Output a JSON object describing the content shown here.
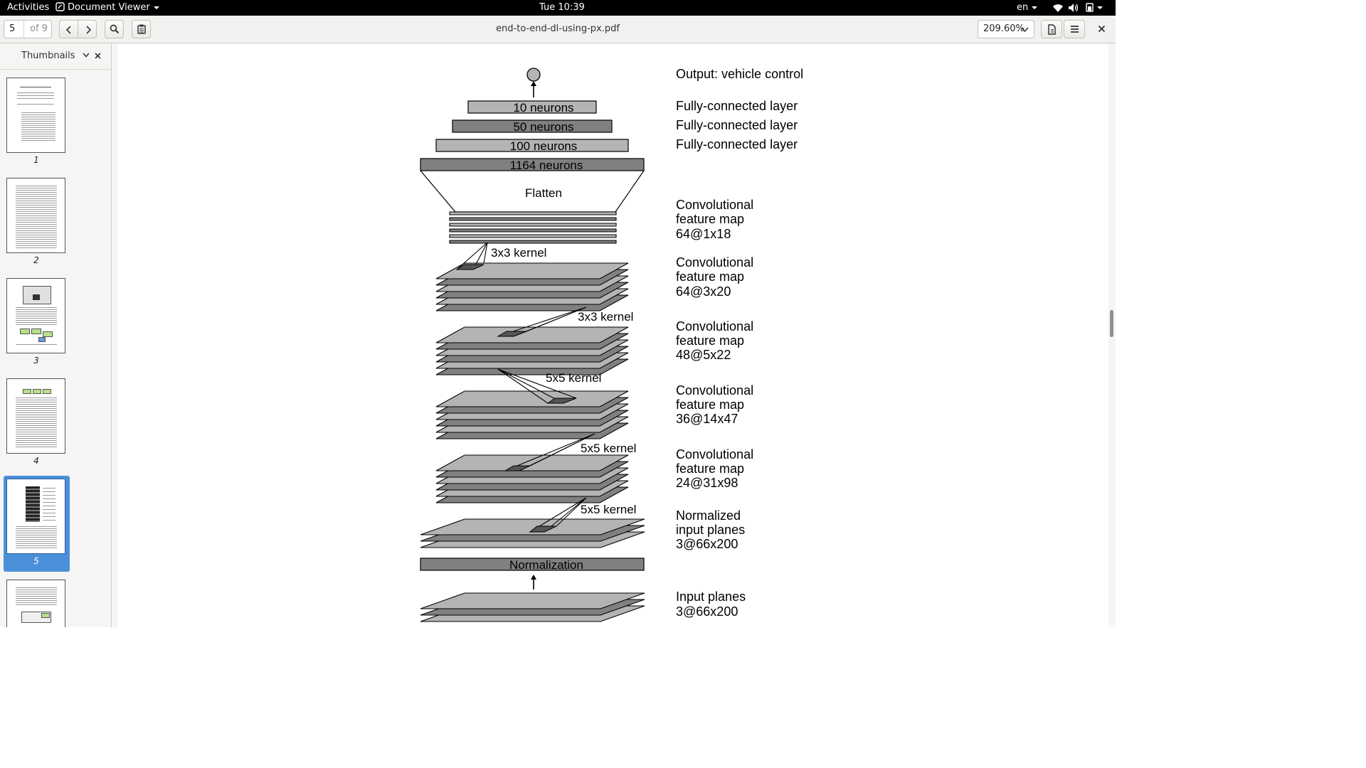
{
  "topbar": {
    "activities": "Activities",
    "app_menu": "Document Viewer",
    "clock": "Tue 10:39",
    "language": "en"
  },
  "toolbar": {
    "page_current": "5",
    "page_total": "of 9",
    "document_title": "end-to-end-dl-using-px.pdf",
    "zoom": "209.60%"
  },
  "sidebar": {
    "mode": "Thumbnails",
    "pages": [
      "1",
      "2",
      "3",
      "4",
      "5"
    ],
    "selected_page": "5"
  },
  "diagram": {
    "output_label": "Output: vehicle control",
    "fc_layers": [
      "10 neurons",
      "50 neurons",
      "100 neurons",
      "1164 neurons"
    ],
    "fc_label": "Fully-connected layer",
    "flatten": "Flatten",
    "conv_word": "Convolutional",
    "feature_word": "feature map",
    "maps": [
      "64@1x18",
      "64@3x20",
      "48@5x22",
      "36@14x47",
      "24@31x98"
    ],
    "kernels": [
      "3x3 kernel",
      "3x3 kernel",
      "5x5 kernel",
      "5x5 kernel",
      "5x5 kernel"
    ],
    "normalized_word": "Normalized",
    "input_planes_word": "input planes",
    "input_word": "Input planes",
    "plane_dims": "3@66x200",
    "normalization": "Normalization"
  },
  "colors": {
    "accent": "#4a90d9",
    "layer_dark": "#808080",
    "layer_light": "#b4b4b4"
  }
}
